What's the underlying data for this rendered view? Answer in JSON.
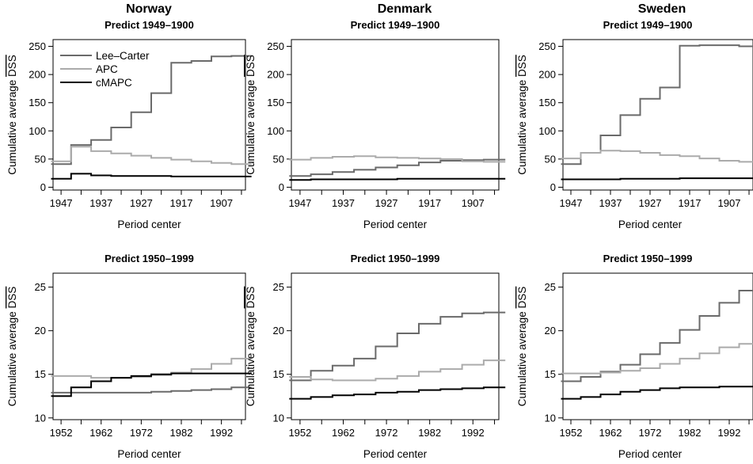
{
  "columns": [
    {
      "title": "Norway"
    },
    {
      "title": "Denmark"
    },
    {
      "title": "Sweden"
    }
  ],
  "legend": {
    "entries": [
      {
        "name": "Lee–Carter",
        "color": "#6a6a6a"
      },
      {
        "name": "APC",
        "color": "#ababab"
      },
      {
        "name": "cMAPC",
        "color": "#000000"
      }
    ]
  },
  "chart_data": [
    {
      "type": "line",
      "country": "Norway",
      "title": "Predict 1949–1900",
      "xlabel": "Period center",
      "ylabel": "Cumulative average DSS",
      "ylabel_overline": "DSS",
      "x": [
        1947,
        1942,
        1937,
        1932,
        1927,
        1922,
        1917,
        1912,
        1907,
        1902
      ],
      "x_ticks": [
        1947,
        1937,
        1927,
        1917,
        1907
      ],
      "x_reversed": true,
      "xlim": [
        1949,
        1901
      ],
      "ylim": [
        -5,
        262
      ],
      "y_ticks": [
        0,
        50,
        100,
        150,
        200,
        250
      ],
      "step": true,
      "series": [
        {
          "name": "Lee–Carter",
          "values": [
            41,
            75,
            84,
            106,
            133,
            167,
            221,
            224,
            232,
            233
          ]
        },
        {
          "name": "APC",
          "values": [
            46,
            72,
            64,
            60,
            56,
            52,
            49,
            46,
            43,
            41
          ]
        },
        {
          "name": "cMAPC",
          "values": [
            15,
            24,
            21,
            20,
            20,
            20,
            19,
            19,
            19,
            19
          ]
        }
      ]
    },
    {
      "type": "line",
      "country": "Denmark",
      "title": "Predict 1949–1900",
      "xlabel": "Period center",
      "ylabel": "Cumulative average DSS",
      "ylabel_overline": "DSS",
      "x": [
        1947,
        1942,
        1937,
        1932,
        1927,
        1922,
        1917,
        1912,
        1907,
        1902
      ],
      "x_ticks": [
        1947,
        1937,
        1927,
        1917,
        1907
      ],
      "x_reversed": true,
      "xlim": [
        1949,
        1901
      ],
      "ylim": [
        -5,
        262
      ],
      "y_ticks": [
        0,
        50,
        100,
        150,
        200,
        250
      ],
      "step": true,
      "series": [
        {
          "name": "Lee–Carter",
          "values": [
            20,
            23,
            27,
            31,
            35,
            39,
            44,
            47,
            48,
            49
          ]
        },
        {
          "name": "APC",
          "values": [
            49,
            52,
            54,
            55,
            53,
            52,
            51,
            50,
            46,
            45
          ]
        },
        {
          "name": "cMAPC",
          "values": [
            13,
            14,
            14,
            14,
            14,
            15,
            15,
            15,
            15,
            15
          ]
        }
      ]
    },
    {
      "type": "line",
      "country": "Sweden",
      "title": "Predict 1949–1900",
      "xlabel": "Period center",
      "ylabel": "Cumulative average DSS",
      "ylabel_overline": "DSS",
      "x": [
        1947,
        1942,
        1937,
        1932,
        1927,
        1922,
        1917,
        1912,
        1907,
        1902
      ],
      "x_ticks": [
        1947,
        1937,
        1927,
        1917,
        1907
      ],
      "x_reversed": true,
      "xlim": [
        1949,
        1901
      ],
      "ylim": [
        -5,
        262
      ],
      "y_ticks": [
        0,
        50,
        100,
        150,
        200,
        250
      ],
      "step": true,
      "series": [
        {
          "name": "Lee–Carter",
          "values": [
            41,
            61,
            92,
            128,
            157,
            177,
            251,
            252,
            252,
            250
          ]
        },
        {
          "name": "APC",
          "values": [
            51,
            61,
            65,
            64,
            61,
            57,
            55,
            51,
            47,
            45
          ]
        },
        {
          "name": "cMAPC",
          "values": [
            14,
            14,
            14,
            15,
            15,
            15,
            16,
            16,
            16,
            16
          ]
        }
      ]
    },
    {
      "type": "line",
      "country": "Norway",
      "title": "Predict 1950–1999",
      "xlabel": "Period center",
      "ylabel": "Cumulative average DSS",
      "ylabel_overline": "DSS",
      "x": [
        1952,
        1957,
        1962,
        1967,
        1972,
        1977,
        1982,
        1987,
        1992,
        1997
      ],
      "x_ticks": [
        1952,
        1962,
        1972,
        1982,
        1992
      ],
      "x_reversed": false,
      "xlim": [
        1950,
        1998
      ],
      "ylim": [
        9.8,
        26.6
      ],
      "y_ticks": [
        10,
        15,
        20,
        25
      ],
      "step": true,
      "series": [
        {
          "name": "Lee–Carter",
          "values": [
            12.9,
            12.9,
            12.9,
            12.9,
            12.9,
            13.0,
            13.1,
            13.2,
            13.3,
            13.5
          ]
        },
        {
          "name": "APC",
          "values": [
            14.8,
            14.8,
            14.6,
            14.6,
            14.7,
            14.9,
            15.2,
            15.6,
            16.2,
            16.8
          ]
        },
        {
          "name": "cMAPC",
          "values": [
            12.5,
            13.5,
            14.2,
            14.6,
            14.8,
            15.0,
            15.1,
            15.1,
            15.1,
            15.1
          ]
        }
      ]
    },
    {
      "type": "line",
      "country": "Denmark",
      "title": "Predict 1950–1999",
      "xlabel": "Period center",
      "ylabel": "Cumulative average DSS",
      "ylabel_overline": "DSS",
      "x": [
        1952,
        1957,
        1962,
        1967,
        1972,
        1977,
        1982,
        1987,
        1992,
        1997
      ],
      "x_ticks": [
        1952,
        1962,
        1972,
        1982,
        1992
      ],
      "x_reversed": false,
      "xlim": [
        1950,
        1998
      ],
      "ylim": [
        9.8,
        26.6
      ],
      "y_ticks": [
        10,
        15,
        20,
        25
      ],
      "step": true,
      "series": [
        {
          "name": "Lee–Carter",
          "values": [
            14.3,
            15.4,
            16.0,
            16.8,
            18.2,
            19.7,
            20.8,
            21.6,
            22.0,
            22.1
          ]
        },
        {
          "name": "APC",
          "values": [
            14.7,
            14.4,
            14.3,
            14.3,
            14.5,
            14.8,
            15.3,
            15.6,
            16.1,
            16.6
          ]
        },
        {
          "name": "cMAPC",
          "values": [
            12.2,
            12.4,
            12.6,
            12.7,
            12.9,
            13.0,
            13.2,
            13.3,
            13.4,
            13.5
          ]
        }
      ]
    },
    {
      "type": "line",
      "country": "Sweden",
      "title": "Predict 1950–1999",
      "xlabel": "Period center",
      "ylabel": "Cumulative average DSS",
      "ylabel_overline": "DSS",
      "x": [
        1952,
        1957,
        1962,
        1967,
        1972,
        1977,
        1982,
        1987,
        1992,
        1997
      ],
      "x_ticks": [
        1952,
        1962,
        1972,
        1982,
        1992
      ],
      "x_reversed": false,
      "xlim": [
        1950,
        1998
      ],
      "ylim": [
        9.8,
        26.6
      ],
      "y_ticks": [
        10,
        15,
        20,
        25
      ],
      "step": true,
      "series": [
        {
          "name": "Lee–Carter",
          "values": [
            14.2,
            14.7,
            15.3,
            16.1,
            17.3,
            18.6,
            20.1,
            21.7,
            23.2,
            24.6
          ]
        },
        {
          "name": "APC",
          "values": [
            15.1,
            15.1,
            15.2,
            15.4,
            15.7,
            16.2,
            16.8,
            17.4,
            18.1,
            18.5
          ]
        },
        {
          "name": "cMAPC",
          "values": [
            12.2,
            12.4,
            12.7,
            13.0,
            13.2,
            13.4,
            13.5,
            13.5,
            13.6,
            13.6
          ]
        }
      ]
    }
  ]
}
